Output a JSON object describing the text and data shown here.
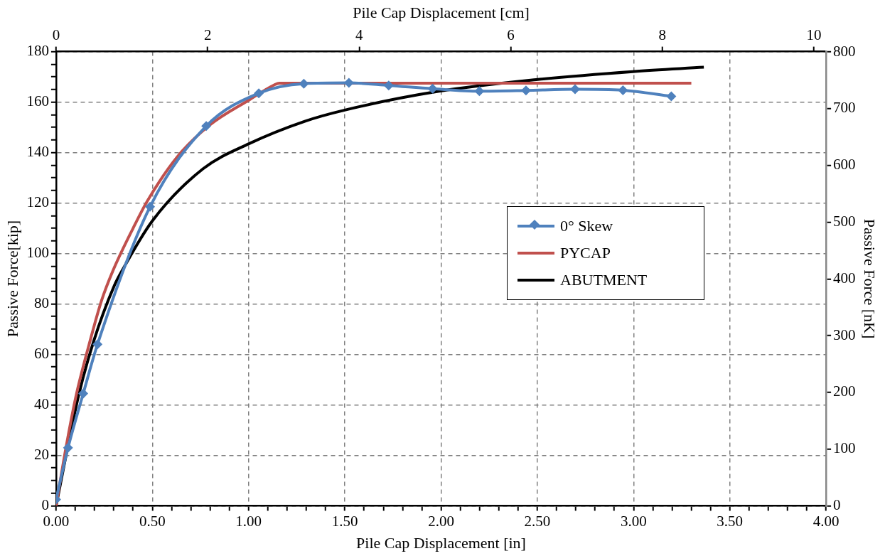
{
  "chart_data": {
    "type": "line",
    "xlabel": "Pile Cap Displacement [in]",
    "ylabel": "Passive Force[kip]",
    "y2label": "Passive Force [nK]",
    "x2label": "Pile Cap Displacement [cm]",
    "xlim": [
      0,
      4
    ],
    "xticks": [
      {
        "value": 0,
        "label": "0.00"
      },
      {
        "value": 0.1,
        "label": null
      },
      {
        "value": 0.2,
        "label": null
      },
      {
        "value": 0.3,
        "label": null
      },
      {
        "value": 0.4,
        "label": null
      },
      {
        "value": 0.5,
        "label": "0.50"
      },
      {
        "value": 0.6,
        "label": null
      },
      {
        "value": 0.7,
        "label": null
      },
      {
        "value": 0.8,
        "label": null
      },
      {
        "value": 0.9,
        "label": null
      },
      {
        "value": 1,
        "label": "1.00"
      },
      {
        "value": 1.1,
        "label": null
      },
      {
        "value": 1.2,
        "label": null
      },
      {
        "value": 1.3,
        "label": null
      },
      {
        "value": 1.4,
        "label": null
      },
      {
        "value": 1.5,
        "label": "1.50"
      },
      {
        "value": 1.6,
        "label": null
      },
      {
        "value": 1.7,
        "label": null
      },
      {
        "value": 1.8,
        "label": null
      },
      {
        "value": 1.9,
        "label": null
      },
      {
        "value": 2,
        "label": "2.00"
      },
      {
        "value": 2.1,
        "label": null
      },
      {
        "value": 2.2,
        "label": null
      },
      {
        "value": 2.3,
        "label": null
      },
      {
        "value": 2.4,
        "label": null
      },
      {
        "value": 2.5,
        "label": "2.50"
      },
      {
        "value": 2.6,
        "label": null
      },
      {
        "value": 2.7,
        "label": null
      },
      {
        "value": 2.8,
        "label": null
      },
      {
        "value": 2.9,
        "label": null
      },
      {
        "value": 3,
        "label": "3.00"
      },
      {
        "value": 3.1,
        "label": null
      },
      {
        "value": 3.2,
        "label": null
      },
      {
        "value": 3.3,
        "label": null
      },
      {
        "value": 3.4,
        "label": null
      },
      {
        "value": 3.5,
        "label": "3.50"
      },
      {
        "value": 3.6,
        "label": null
      },
      {
        "value": 3.7,
        "label": null
      },
      {
        "value": 3.8,
        "label": null
      },
      {
        "value": 3.9,
        "label": null
      },
      {
        "value": 4,
        "label": "4.00"
      }
    ],
    "x2lim": [
      0,
      10.16
    ],
    "x2ticks": [
      0,
      2,
      4,
      6,
      8,
      10
    ],
    "ylim": [
      0,
      180
    ],
    "yticks": [
      0,
      {
        "value": 5,
        "label": null
      },
      {
        "value": 10,
        "label": null
      },
      {
        "value": 15,
        "label": null
      },
      20,
      {
        "value": 25,
        "label": null
      },
      {
        "value": 30,
        "label": null
      },
      {
        "value": 35,
        "label": null
      },
      40,
      {
        "value": 45,
        "label": null
      },
      {
        "value": 50,
        "label": null
      },
      {
        "value": 55,
        "label": null
      },
      60,
      {
        "value": 65,
        "label": null
      },
      {
        "value": 70,
        "label": null
      },
      {
        "value": 75,
        "label": null
      },
      80,
      {
        "value": 85,
        "label": null
      },
      {
        "value": 90,
        "label": null
      },
      {
        "value": 95,
        "label": null
      },
      100,
      {
        "value": 105,
        "label": null
      },
      {
        "value": 110,
        "label": null
      },
      {
        "value": 115,
        "label": null
      },
      120,
      {
        "value": 125,
        "label": null
      },
      {
        "value": 130,
        "label": null
      },
      {
        "value": 135,
        "label": null
      },
      140,
      {
        "value": 145,
        "label": null
      },
      {
        "value": 150,
        "label": null
      },
      {
        "value": 155,
        "label": null
      },
      160,
      {
        "value": 165,
        "label": null
      },
      {
        "value": 170,
        "label": null
      },
      {
        "value": 175,
        "label": null
      },
      180
    ],
    "y2lim": [
      0,
      800.7
    ],
    "y2ticks": [
      0,
      100,
      200,
      300,
      400,
      500,
      600,
      700,
      800
    ],
    "grid": true,
    "legend": "right",
    "line_style": "solid",
    "series": [
      {
        "name": "0° Skew",
        "color": "#4f81bd",
        "marker": "diamond",
        "x": [
          0,
          0.062,
          0.141,
          0.215,
          0.488,
          0.78,
          1.053,
          1.287,
          1.521,
          1.728,
          1.956,
          2.199,
          2.441,
          2.696,
          2.945,
          3.196
        ],
        "values": [
          2.5,
          23,
          44.5,
          64,
          118.5,
          150.5,
          163.5,
          167.3,
          167.6,
          166.6,
          165.3,
          164.3,
          164.6,
          165.1,
          164.7,
          162.3
        ]
      },
      {
        "name": "PYCAP",
        "color": "#c0504d",
        "marker": "none",
        "x": [
          0,
          0.05,
          0.104,
          0.17,
          0.236,
          0.295,
          0.4,
          0.474,
          0.633,
          0.8,
          1.002,
          1.133,
          1.16,
          3.3
        ],
        "values": [
          0,
          22.5,
          43.7,
          63.5,
          81.3,
          93.1,
          110,
          120.8,
          138.6,
          151,
          160.8,
          166.8,
          167.5,
          167.5
        ]
      },
      {
        "name": "ABUTMENT",
        "color": "#000000",
        "marker": "none",
        "x": [
          0,
          0.117,
          0.196,
          0.302,
          0.342,
          0.5,
          0.764,
          1.002,
          1.292,
          1.503,
          1.99,
          2.494,
          2.996,
          3.365
        ],
        "values": [
          0,
          43.7,
          65.4,
          87.2,
          93.1,
          112.9,
          133.6,
          143.5,
          152.4,
          156.9,
          164.3,
          168.9,
          172.1,
          173.8
        ]
      }
    ]
  }
}
